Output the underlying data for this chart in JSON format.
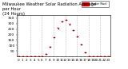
{
  "title": "Milwaukee Weather Solar Radiation Average",
  "subtitle": "per Hour",
  "subtitle2": "(24 Hours)",
  "title_fontsize": 3.8,
  "hours": [
    0,
    1,
    2,
    3,
    4,
    5,
    6,
    7,
    8,
    9,
    10,
    11,
    12,
    13,
    14,
    15,
    16,
    17,
    18,
    19,
    20,
    21,
    22,
    23
  ],
  "solar_values": [
    0,
    0,
    0,
    0,
    0,
    0,
    2,
    25,
    90,
    175,
    260,
    320,
    335,
    295,
    240,
    185,
    110,
    40,
    5,
    0,
    0,
    0,
    0,
    0
  ],
  "dot_color_red": "#dd0000",
  "dot_color_black": "#000000",
  "background_color": "#ffffff",
  "grid_color": "#bbbbbb",
  "grid_x_positions": [
    0,
    3,
    6,
    9,
    12,
    15,
    18,
    21
  ],
  "ylim": [
    0,
    375
  ],
  "xlim": [
    -0.5,
    23.5
  ],
  "ytick_values": [
    50,
    100,
    150,
    200,
    250,
    300,
    350
  ],
  "ytick_fontsize": 3.2,
  "xtick_fontsize": 3.0,
  "legend_label": "Solar Rad.",
  "legend_color": "#dd0000",
  "marker_size_red": 1.8,
  "marker_size_black": 1.2
}
